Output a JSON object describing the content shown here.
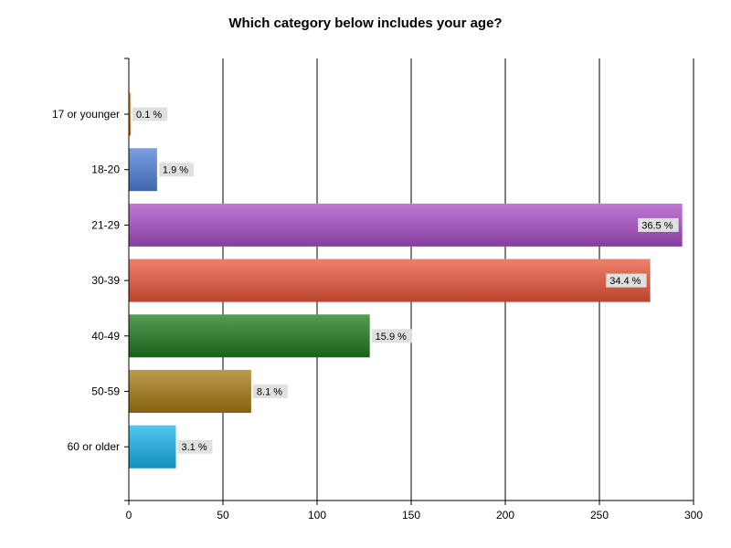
{
  "chart_data": {
    "type": "bar",
    "orientation": "horizontal",
    "title": "Which category below includes your age?",
    "xlabel": "",
    "ylabel": "",
    "xlim": [
      0,
      300
    ],
    "x_ticks": [
      0,
      50,
      100,
      150,
      200,
      250,
      300
    ],
    "grid": "vertical",
    "legend": "none",
    "categories": [
      "17 or younger",
      "18-20",
      "21-29",
      "30-39",
      "40-49",
      "50-59",
      "60 or older"
    ],
    "values": [
      1,
      15,
      294,
      277,
      128,
      65,
      25
    ],
    "data_labels": [
      "0.1 %",
      "1.9 %",
      "36.5 %",
      "34.4 %",
      "15.9 %",
      "8.1 %",
      "3.1 %"
    ],
    "colors": [
      "#d9822b",
      "#4f7fd8",
      "#a94ec7",
      "#e8553a",
      "#1e7a1e",
      "#a67a12",
      "#18b4ec"
    ]
  }
}
